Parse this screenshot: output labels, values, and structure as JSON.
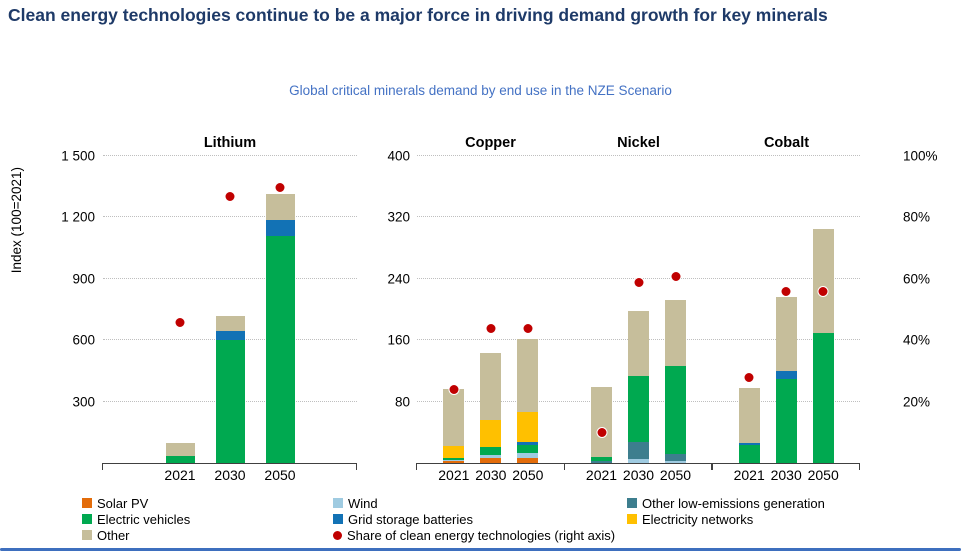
{
  "page": {
    "title": "Clean energy technologies continue to be a major force in driving demand growth for key minerals",
    "subtitle": "Global critical minerals demand by end use in the NZE Scenario"
  },
  "colors": {
    "title_text": "#1E3A68",
    "subtitle_text": "#4472C4",
    "solar_pv": "#E36C0A",
    "wind": "#9FCBE1",
    "other_low_emissions_generation": "#3D7E8E",
    "electric_vehicles": "#00A950",
    "grid_storage_batteries": "#1272B5",
    "electricity_networks": "#FFC000",
    "other": "#C6BE9B",
    "share_dot": "#C00000",
    "gridline": "#BFBFBF",
    "axis_line": "#404040",
    "footer_bar": "#3E6FBE"
  },
  "legend": {
    "columns": [
      {
        "items": [
          {
            "label": "Solar PV",
            "key": "solar_pv",
            "marker": "square"
          },
          {
            "label": "Electric vehicles",
            "key": "electric_vehicles",
            "marker": "square"
          },
          {
            "label": "Other",
            "key": "other",
            "marker": "square"
          }
        ]
      },
      {
        "items": [
          {
            "label": "Wind",
            "key": "wind",
            "marker": "square"
          },
          {
            "label": "Grid storage batteries",
            "key": "grid_storage_batteries",
            "marker": "square"
          },
          {
            "label": "Share of clean energy technologies (right axis)",
            "key": "share_dot",
            "marker": "dot"
          }
        ]
      },
      {
        "items": [
          {
            "label": "Other low-emissions generation",
            "key": "other_low_emissions_generation",
            "marker": "square"
          },
          {
            "label": "Electricity networks",
            "key": "electricity_networks",
            "marker": "square"
          }
        ]
      }
    ]
  },
  "chart_data": [
    {
      "type": "bar",
      "stacked": true,
      "title": "Lithium",
      "ylabel": "Index (100=2021)",
      "ylim": [
        0,
        1500
      ],
      "grid": "dotted",
      "yticks": [
        {
          "value": 300,
          "label": "300"
        },
        {
          "value": 600,
          "label": "600"
        },
        {
          "value": 900,
          "label": "900"
        },
        {
          "value": 1200,
          "label": "1 200"
        },
        {
          "value": 1500,
          "label": "1 500"
        }
      ],
      "categories": [
        "2021",
        "2030",
        "2050"
      ],
      "series": [
        {
          "name": "Electric vehicles",
          "key": "electric_vehicles",
          "values": [
            35,
            600,
            1110
          ]
        },
        {
          "name": "Grid storage batteries",
          "key": "grid_storage_batteries",
          "values": [
            0,
            45,
            75
          ]
        },
        {
          "name": "Other",
          "key": "other",
          "values": [
            65,
            75,
            130
          ]
        }
      ],
      "share_of_clean_energy_pct": [
        46,
        87,
        90
      ]
    },
    {
      "type": "bar",
      "stacked": true,
      "groups": [
        "Copper",
        "Nickel",
        "Cobalt"
      ],
      "ylim": [
        0,
        400
      ],
      "grid": "dotted",
      "yticks": [
        {
          "value": 80,
          "label": "80"
        },
        {
          "value": 160,
          "label": "160"
        },
        {
          "value": 240,
          "label": "240"
        },
        {
          "value": 320,
          "label": "320"
        },
        {
          "value": 400,
          "label": "400"
        }
      ],
      "right_axis_ticks": [
        {
          "value": 20,
          "label": "20%"
        },
        {
          "value": 40,
          "label": "40%"
        },
        {
          "value": 60,
          "label": "60%"
        },
        {
          "value": 80,
          "label": "80%"
        },
        {
          "value": 100,
          "label": "100%"
        }
      ],
      "categories": [
        "2021",
        "2030",
        "2050"
      ],
      "series": [
        {
          "name": "Solar PV",
          "key": "solar_pv",
          "values_by_group": {
            "Copper": [
              2,
              6,
              6
            ],
            "Nickel": [
              0,
              0,
              0
            ],
            "Cobalt": [
              0,
              0,
              0
            ]
          }
        },
        {
          "name": "Wind",
          "key": "wind",
          "values_by_group": {
            "Copper": [
              2,
              5,
              7
            ],
            "Nickel": [
              0,
              5,
              3
            ],
            "Cobalt": [
              0,
              0,
              0
            ]
          }
        },
        {
          "name": "Other low-emissions generation",
          "key": "other_low_emissions_generation",
          "values_by_group": {
            "Copper": [
              0,
              0,
              0
            ],
            "Nickel": [
              2,
              22,
              9
            ],
            "Cobalt": [
              0,
              0,
              0
            ]
          }
        },
        {
          "name": "Electric vehicles",
          "key": "electric_vehicles",
          "values_by_group": {
            "Copper": [
              2,
              10,
              11
            ],
            "Nickel": [
              6,
              86,
              115
            ],
            "Cobalt": [
              24,
              110,
              170
            ]
          }
        },
        {
          "name": "Grid storage batteries",
          "key": "grid_storage_batteries",
          "values_by_group": {
            "Copper": [
              0,
              0,
              3
            ],
            "Nickel": [
              0,
              0,
              0
            ],
            "Cobalt": [
              2,
              10,
              0
            ]
          }
        },
        {
          "name": "Electricity networks",
          "key": "electricity_networks",
          "values_by_group": {
            "Copper": [
              16,
              35,
              39
            ],
            "Nickel": [
              0,
              0,
              0
            ],
            "Cobalt": [
              0,
              0,
              0
            ]
          }
        },
        {
          "name": "Other",
          "key": "other",
          "values_by_group": {
            "Copper": [
              75,
              88,
              95
            ],
            "Nickel": [
              91,
              85,
              85
            ],
            "Cobalt": [
              72,
              96,
              135
            ]
          }
        }
      ],
      "share_of_clean_energy_pct_by_group": {
        "Copper": [
          24,
          44,
          44
        ],
        "Nickel": [
          10,
          59,
          61
        ],
        "Cobalt": [
          28,
          56,
          56
        ]
      }
    }
  ]
}
